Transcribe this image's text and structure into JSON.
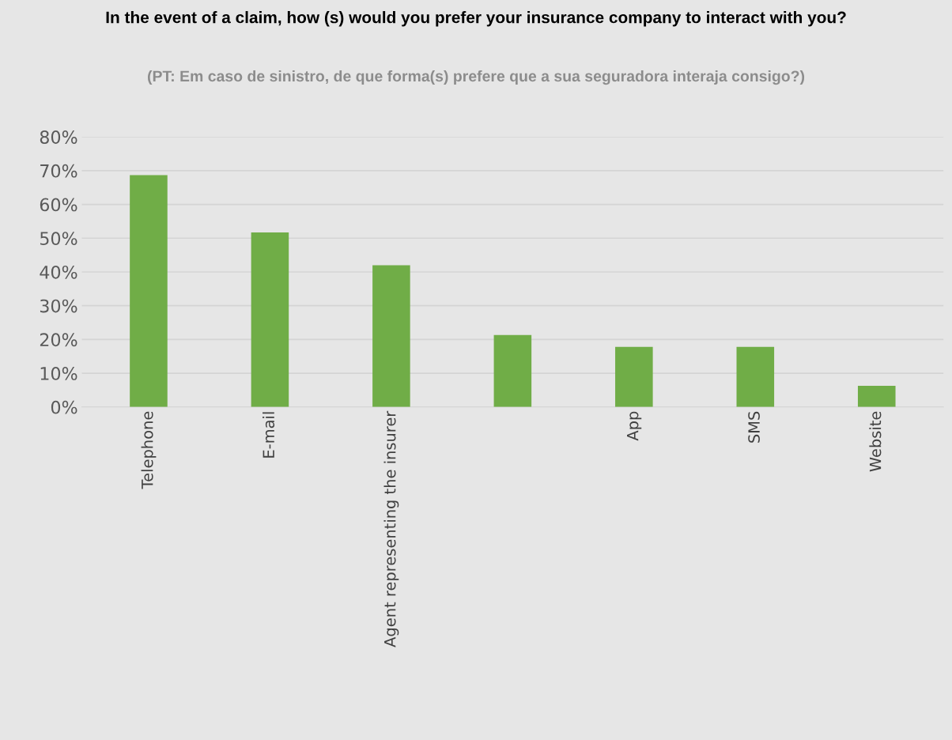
{
  "chart_data": {
    "type": "bar",
    "title": "In the event of a claim, how (s) would you prefer your insurance company to interact with you?",
    "subtitle": "(PT: Em caso de sinistro, de que forma(s) prefere que a sua seguradora interaja consigo?)",
    "categories": [
      "Telephone",
      "E-mail",
      "Agent representing the insurer",
      null,
      "App",
      "SMS",
      "Website"
    ],
    "values": [
      68.7,
      51.7,
      42,
      21.3,
      17.8,
      17.8,
      6.3
    ],
    "color": "#70ad47",
    "ylim": [
      0,
      80
    ],
    "yticks": [
      {
        "value": 0,
        "label": "0%"
      },
      {
        "value": 10,
        "label": "10%"
      },
      {
        "value": 20,
        "label": "20%"
      },
      {
        "value": 30,
        "label": "30%"
      },
      {
        "value": 40,
        "label": "40%"
      },
      {
        "value": 50,
        "label": "50%"
      },
      {
        "value": 60,
        "label": "60%"
      },
      {
        "value": 70,
        "label": "70%"
      },
      {
        "value": 80,
        "label": "80%"
      }
    ],
    "grid": "y",
    "legend": false
  }
}
